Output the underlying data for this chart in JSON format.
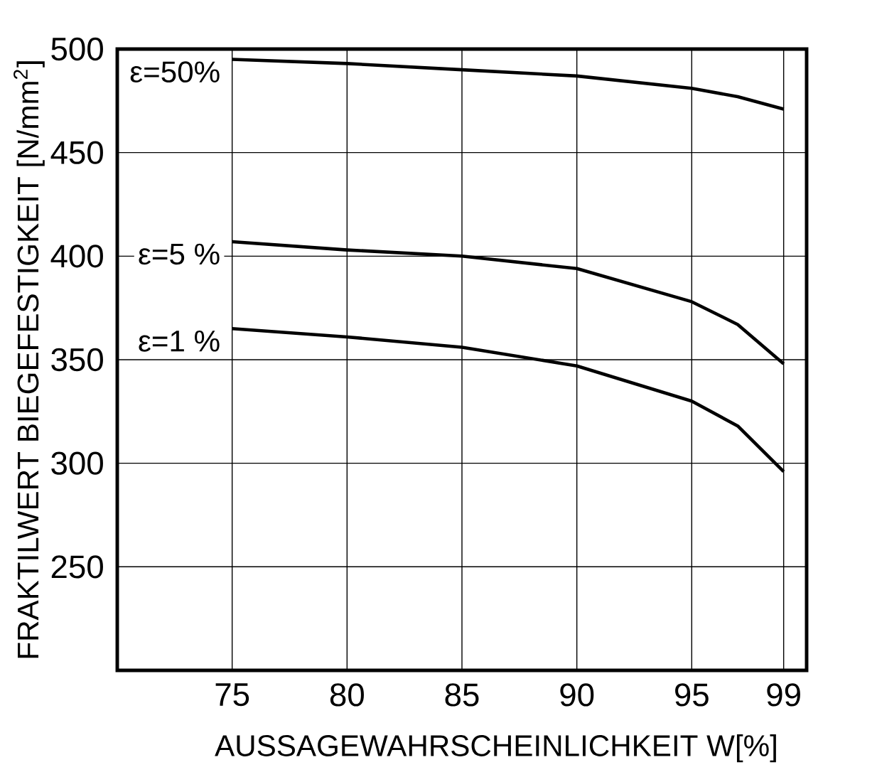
{
  "chart_data": {
    "type": "line",
    "xlabel": "AUSSAGEWAHRSCHEINLICHKEIT    W[%]",
    "ylabel": "FRAKTILWERT  BIEGEFESTIGKEIT  [N/mm$^{2}$]",
    "xlim": [
      70,
      100
    ],
    "ylim": [
      200,
      500
    ],
    "xticks": [
      75,
      80,
      85,
      90,
      95,
      99
    ],
    "yticks": [
      250,
      300,
      350,
      400,
      450,
      500
    ],
    "grid": true,
    "x": [
      75,
      80,
      85,
      90,
      95,
      97,
      99
    ],
    "series": [
      {
        "name": "ε=50%",
        "color": "#000000",
        "values": [
          495,
          493,
          490,
          487,
          481,
          477,
          471
        ]
      },
      {
        "name": "ε=5 %",
        "color": "#000000",
        "values": [
          407,
          403,
          400,
          394,
          378,
          367,
          348
        ]
      },
      {
        "name": "ε=1 %",
        "color": "#000000",
        "values": [
          365,
          361,
          356,
          347,
          330,
          318,
          296
        ]
      }
    ]
  }
}
